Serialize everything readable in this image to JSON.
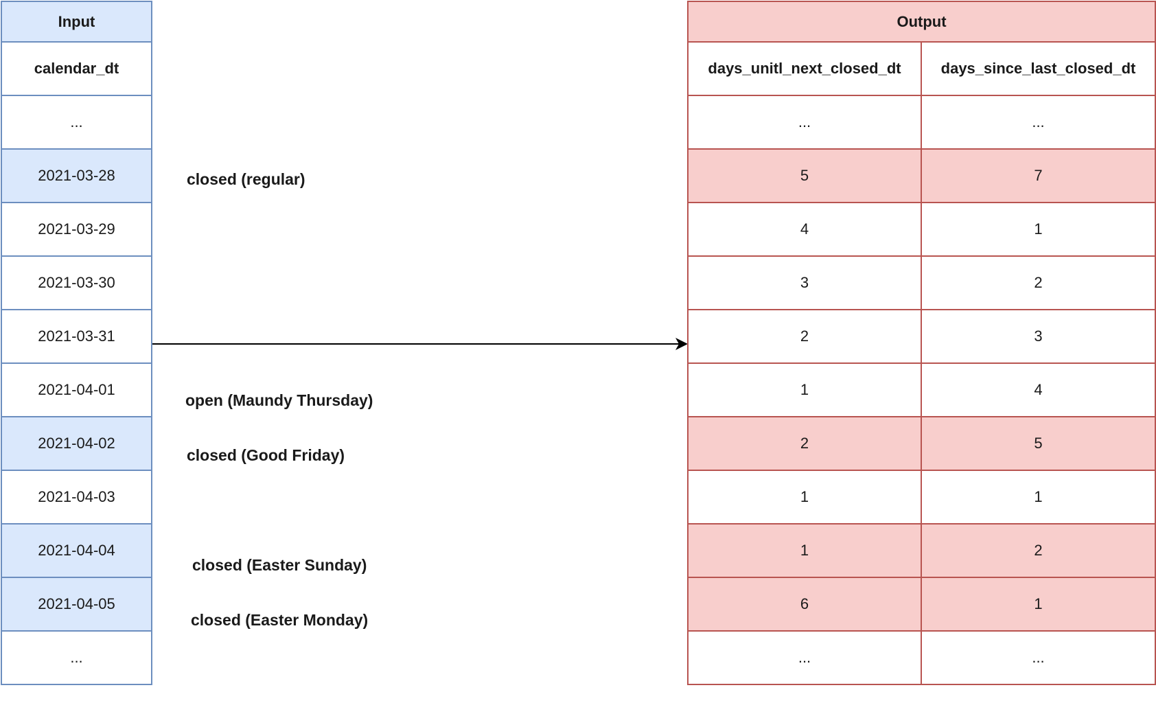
{
  "input": {
    "title": "Input",
    "column": "calendar_dt",
    "rows": [
      {
        "date": "...",
        "closed": false
      },
      {
        "date": "2021-03-28",
        "closed": true
      },
      {
        "date": "2021-03-29",
        "closed": false
      },
      {
        "date": "2021-03-30",
        "closed": false
      },
      {
        "date": "2021-03-31",
        "closed": false
      },
      {
        "date": "2021-04-01",
        "closed": false
      },
      {
        "date": "2021-04-02",
        "closed": true
      },
      {
        "date": "2021-04-03",
        "closed": false
      },
      {
        "date": "2021-04-04",
        "closed": true
      },
      {
        "date": "2021-04-05",
        "closed": true
      },
      {
        "date": "...",
        "closed": false
      }
    ]
  },
  "notes": {
    "n1": "closed (regular)",
    "n2": "open (Maundy Thursday)",
    "n3": "closed (Good Friday)",
    "n4": "closed (Easter Sunday)",
    "n5": "closed (Easter Monday)"
  },
  "output": {
    "title": "Output",
    "columns": [
      "days_unitl_next_closed_dt",
      "days_since_last_closed_dt"
    ],
    "rows": [
      {
        "next": "...",
        "since": "...",
        "closed": false
      },
      {
        "next": "5",
        "since": "7",
        "closed": true
      },
      {
        "next": "4",
        "since": "1",
        "closed": false
      },
      {
        "next": "3",
        "since": "2",
        "closed": false
      },
      {
        "next": "2",
        "since": "3",
        "closed": false
      },
      {
        "next": "1",
        "since": "4",
        "closed": false
      },
      {
        "next": "2",
        "since": "5",
        "closed": true
      },
      {
        "next": "1",
        "since": "1",
        "closed": false
      },
      {
        "next": "1",
        "since": "2",
        "closed": true
      },
      {
        "next": "6",
        "since": "1",
        "closed": true
      },
      {
        "next": "...",
        "since": "...",
        "closed": false
      }
    ]
  },
  "colors": {
    "input_fill": "#dae8fc",
    "input_border": "#6c8ebf",
    "output_fill": "#f8cecc",
    "output_border": "#b85450"
  }
}
